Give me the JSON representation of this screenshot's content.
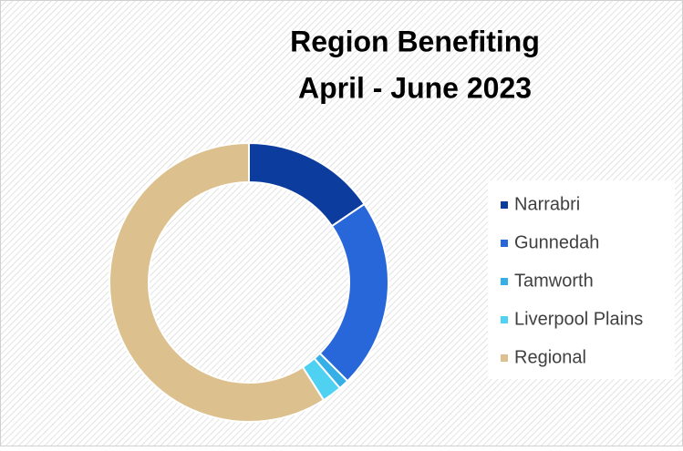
{
  "chart_data": {
    "type": "donut",
    "title": [
      "Region Benefiting",
      "April - June 2023"
    ],
    "categories": [
      "Narrabri",
      "Gunnedah",
      "Tamworth",
      "Liverpool Plains",
      "Regional"
    ],
    "values": [
      15.5,
      22,
      1.2,
      2.3,
      59
    ],
    "colors": [
      "#0b3c9e",
      "#2767da",
      "#36aee6",
      "#4fd2f2",
      "#dcc08e"
    ],
    "legend": "right"
  }
}
